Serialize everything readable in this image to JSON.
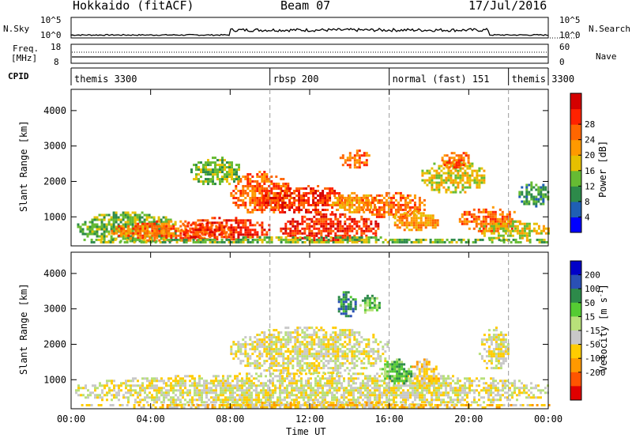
{
  "header": {
    "station": "Hokkaido (fitACF)",
    "beam": "Beam 07",
    "date": "17/Jul/2016"
  },
  "top_panels": {
    "nsky_label": "N.Sky",
    "nsky_ticks_left": [
      "10^5",
      "10^0"
    ],
    "nsky_ticks_right": [
      "10^5",
      "10^0"
    ],
    "nsearch_label": "N.Search",
    "freq_label": "Freq.",
    "freq_unit": "[MHz]",
    "freq_ticks": [
      "18",
      "8"
    ],
    "nave_ticks": [
      "60",
      "0"
    ],
    "nave_label": "Nave",
    "cpid_label": "CPID"
  },
  "cpid_segments": [
    {
      "label": "themis 3300",
      "start_h": 0,
      "end_h": 10
    },
    {
      "label": "rbsp 200",
      "start_h": 10,
      "end_h": 16
    },
    {
      "label": "normal (fast) 151",
      "start_h": 16,
      "end_h": 22
    },
    {
      "label": "themis 3300",
      "start_h": 22,
      "end_h": 24
    }
  ],
  "chart_data": [
    {
      "type": "heatmap",
      "title": "Power",
      "ylabel": "Slant Range [km]",
      "xlabel": "Time UT",
      "xlim_h": [
        0,
        24
      ],
      "ylim_km": [
        180,
        4600
      ],
      "yticks": [
        "1000",
        "2000",
        "3000",
        "4000"
      ],
      "colorbar": {
        "label": "Power [dB]",
        "ticks": [
          "4",
          "8",
          "12",
          "16",
          "20",
          "24",
          "28"
        ],
        "colors": [
          "#0000ff",
          "#1f5fb4",
          "#2d8a4a",
          "#66bb33",
          "#e6c000",
          "#ff9900",
          "#ff6600",
          "#ff2200",
          "#d40000"
        ]
      },
      "blobs": [
        {
          "t": [
            0.3,
            5.5
          ],
          "r": [
            300,
            1150
          ],
          "level": 3
        },
        {
          "t": [
            2,
            8
          ],
          "r": [
            350,
            900
          ],
          "level": 6
        },
        {
          "t": [
            5.5,
            10
          ],
          "r": [
            350,
            1000
          ],
          "level": 7
        },
        {
          "t": [
            8,
            11
          ],
          "r": [
            1100,
            2300
          ],
          "level": 6
        },
        {
          "t": [
            9.5,
            14
          ],
          "r": [
            1100,
            1900
          ],
          "level": 7
        },
        {
          "t": [
            10.5,
            15.5
          ],
          "r": [
            300,
            1100
          ],
          "level": 7
        },
        {
          "t": [
            13,
            15.5
          ],
          "r": [
            1100,
            1700
          ],
          "level": 5
        },
        {
          "t": [
            13.5,
            15
          ],
          "r": [
            2400,
            2900
          ],
          "level": 6
        },
        {
          "t": [
            14.5,
            17.8
          ],
          "r": [
            1000,
            1700
          ],
          "level": 6
        },
        {
          "t": [
            16,
            18.5
          ],
          "r": [
            600,
            1200
          ],
          "level": 5
        },
        {
          "t": [
            17.5,
            20.8
          ],
          "r": [
            1700,
            2600
          ],
          "level": 4
        },
        {
          "t": [
            18.5,
            20
          ],
          "r": [
            2400,
            2900
          ],
          "level": 6
        },
        {
          "t": [
            19.5,
            22.5
          ],
          "r": [
            600,
            1300
          ],
          "level": 6
        },
        {
          "t": [
            20.5,
            24
          ],
          "r": [
            350,
            900
          ],
          "level": 4
        },
        {
          "t": [
            0.5,
            24
          ],
          "r": [
            250,
            450
          ],
          "level": 3
        },
        {
          "t": [
            6,
            8.5
          ],
          "r": [
            1900,
            2700
          ],
          "level": 3
        },
        {
          "t": [
            22.5,
            24
          ],
          "r": [
            1300,
            2000
          ],
          "level": 2
        }
      ]
    },
    {
      "type": "heatmap",
      "title": "Velocity",
      "ylabel": "Slant Range [km]",
      "xlabel": "Time UT",
      "xlim_h": [
        0,
        24
      ],
      "ylim_km": [
        180,
        4600
      ],
      "yticks": [
        "1000",
        "2000",
        "3000",
        "4000"
      ],
      "xticks": [
        "00:00",
        "04:00",
        "08:00",
        "12:00",
        "16:00",
        "20:00",
        "00:00"
      ],
      "colorbar": {
        "label": "Velocity [m s^-1]",
        "ticks": [
          "200",
          "100",
          "50",
          "15",
          "-15",
          "-50",
          "-100",
          "-200"
        ],
        "colors": [
          "#0000c8",
          "#2a50b4",
          "#2d8a4a",
          "#55cc33",
          "#b8e07a",
          "#c8c8c8",
          "#ffcc00",
          "#ff9900",
          "#ff5500",
          "#e00000"
        ]
      },
      "blobs": [
        {
          "t": [
            0.2,
            24
          ],
          "r": [
            250,
            1200
          ],
          "level": 5
        },
        {
          "t": [
            8,
            16
          ],
          "r": [
            1200,
            2500
          ],
          "level": 5
        },
        {
          "t": [
            13.3,
            14.3
          ],
          "r": [
            2800,
            3500
          ],
          "level": 2
        },
        {
          "t": [
            14.5,
            15.5
          ],
          "r": [
            2900,
            3400
          ],
          "level": 3
        },
        {
          "t": [
            15.5,
            17.2
          ],
          "r": [
            900,
            1600
          ],
          "level": 3
        },
        {
          "t": [
            17,
            18.5
          ],
          "r": [
            800,
            1600
          ],
          "level": 6
        },
        {
          "t": [
            20.5,
            22
          ],
          "r": [
            1300,
            2500
          ],
          "level": 5
        },
        {
          "t": [
            0.5,
            24
          ],
          "r": [
            220,
            380
          ],
          "level": 6
        }
      ]
    }
  ]
}
